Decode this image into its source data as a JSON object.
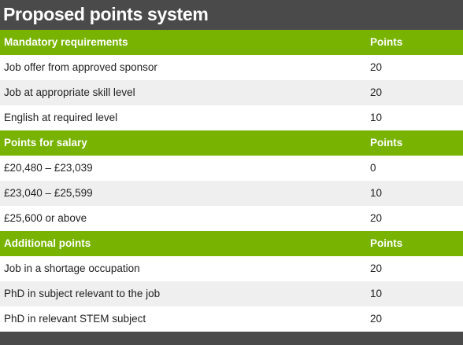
{
  "title": "Proposed points system",
  "sections": [
    {
      "heading": "Mandatory requirements",
      "points_header": "Points",
      "rows": [
        {
          "label": "Job offer from approved sponsor",
          "points": "20"
        },
        {
          "label": "Job at appropriate skill level",
          "points": "20"
        },
        {
          "label": "English at required level",
          "points": "10"
        }
      ]
    },
    {
      "heading": "Points for salary",
      "points_header": "Points",
      "rows": [
        {
          "label": "£20,480 – £23,039",
          "points": "0"
        },
        {
          "label": "£23,040 – £25,599",
          "points": "10"
        },
        {
          "label": "£25,600 or above",
          "points": "20"
        }
      ]
    },
    {
      "heading": "Additional points",
      "points_header": "Points",
      "rows": [
        {
          "label": "Job in a shortage occupation",
          "points": "20"
        },
        {
          "label": "PhD in subject relevant to the job",
          "points": "10"
        },
        {
          "label": "PhD in relevant STEM subject",
          "points": "20"
        }
      ]
    }
  ],
  "colors": {
    "header_green": "#77b300",
    "frame_dark": "#4a4a4a",
    "row_white": "#ffffff",
    "row_grey": "#efefef"
  }
}
